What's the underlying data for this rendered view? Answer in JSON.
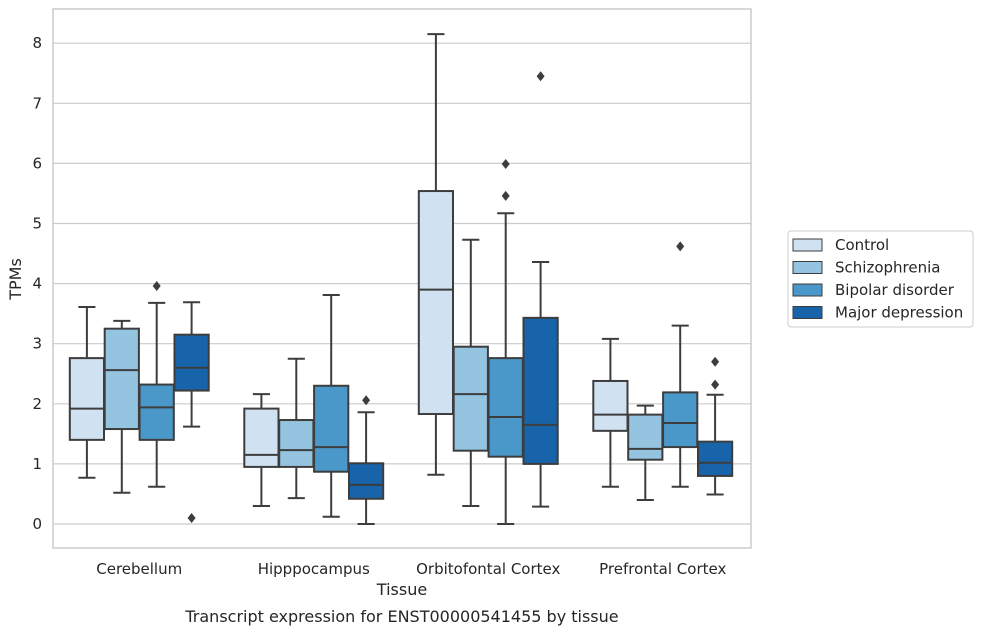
{
  "chart_data": {
    "type": "box",
    "caption": "Transcript expression for ENST00000541455 by tissue",
    "xlabel": "Tissue",
    "ylabel": "TPMs",
    "ylim": [
      -0.4,
      8.6
    ],
    "yticks": [
      0,
      1,
      2,
      3,
      4,
      5,
      6,
      7,
      8
    ],
    "grid": "horizontal",
    "legend_position": "right",
    "categories": [
      "Cerebellum",
      "Hipppocampus",
      "Orbitofontal Cortex",
      "Prefrontal Cortex"
    ],
    "series": [
      {
        "name": "Control",
        "color": "#d0e1f2",
        "boxes": [
          {
            "whislo": 0.77,
            "q1": 1.4,
            "med": 1.92,
            "q3": 2.76,
            "whishi": 3.61,
            "fliers": []
          },
          {
            "whislo": 0.3,
            "q1": 0.95,
            "med": 1.15,
            "q3": 1.92,
            "whishi": 2.16,
            "fliers": []
          },
          {
            "whislo": 0.82,
            "q1": 1.83,
            "med": 3.9,
            "q3": 5.54,
            "whishi": 8.15,
            "fliers": []
          },
          {
            "whislo": 0.62,
            "q1": 1.55,
            "med": 1.82,
            "q3": 2.38,
            "whishi": 3.08,
            "fliers": []
          }
        ]
      },
      {
        "name": "Schizophrenia",
        "color": "#94c4df",
        "boxes": [
          {
            "whislo": 0.52,
            "q1": 1.58,
            "med": 2.56,
            "q3": 3.25,
            "whishi": 3.38,
            "fliers": []
          },
          {
            "whislo": 0.43,
            "q1": 0.95,
            "med": 1.23,
            "q3": 1.73,
            "whishi": 2.75,
            "fliers": []
          },
          {
            "whislo": 0.3,
            "q1": 1.22,
            "med": 2.16,
            "q3": 2.95,
            "whishi": 4.73,
            "fliers": []
          },
          {
            "whislo": 0.4,
            "q1": 1.07,
            "med": 1.25,
            "q3": 1.82,
            "whishi": 1.97,
            "fliers": []
          }
        ]
      },
      {
        "name": "Bipolar disorder",
        "color": "#4a98c9",
        "boxes": [
          {
            "whislo": 0.62,
            "q1": 1.4,
            "med": 1.94,
            "q3": 2.32,
            "whishi": 3.68,
            "fliers": [
              3.96
            ]
          },
          {
            "whislo": 0.12,
            "q1": 0.87,
            "med": 1.28,
            "q3": 2.3,
            "whishi": 3.81,
            "fliers": []
          },
          {
            "whislo": 0.0,
            "q1": 1.12,
            "med": 1.78,
            "q3": 2.76,
            "whishi": 5.17,
            "fliers": [
              5.46,
              5.99
            ]
          },
          {
            "whislo": 0.62,
            "q1": 1.28,
            "med": 1.68,
            "q3": 2.19,
            "whishi": 3.3,
            "fliers": [
              4.62
            ]
          }
        ]
      },
      {
        "name": "Major depression",
        "color": "#1764ab",
        "boxes": [
          {
            "whislo": 1.62,
            "q1": 2.22,
            "med": 2.6,
            "q3": 3.15,
            "whishi": 3.69,
            "fliers": [
              0.1
            ]
          },
          {
            "whislo": 0.0,
            "q1": 0.42,
            "med": 0.65,
            "q3": 1.01,
            "whishi": 1.86,
            "fliers": [
              2.06
            ]
          },
          {
            "whislo": 0.29,
            "q1": 1.0,
            "med": 1.65,
            "q3": 3.43,
            "whishi": 4.36,
            "fliers": [
              7.45
            ]
          },
          {
            "whislo": 0.49,
            "q1": 0.8,
            "med": 1.02,
            "q3": 1.37,
            "whishi": 2.15,
            "fliers": [
              2.32,
              2.7
            ]
          }
        ]
      }
    ]
  }
}
